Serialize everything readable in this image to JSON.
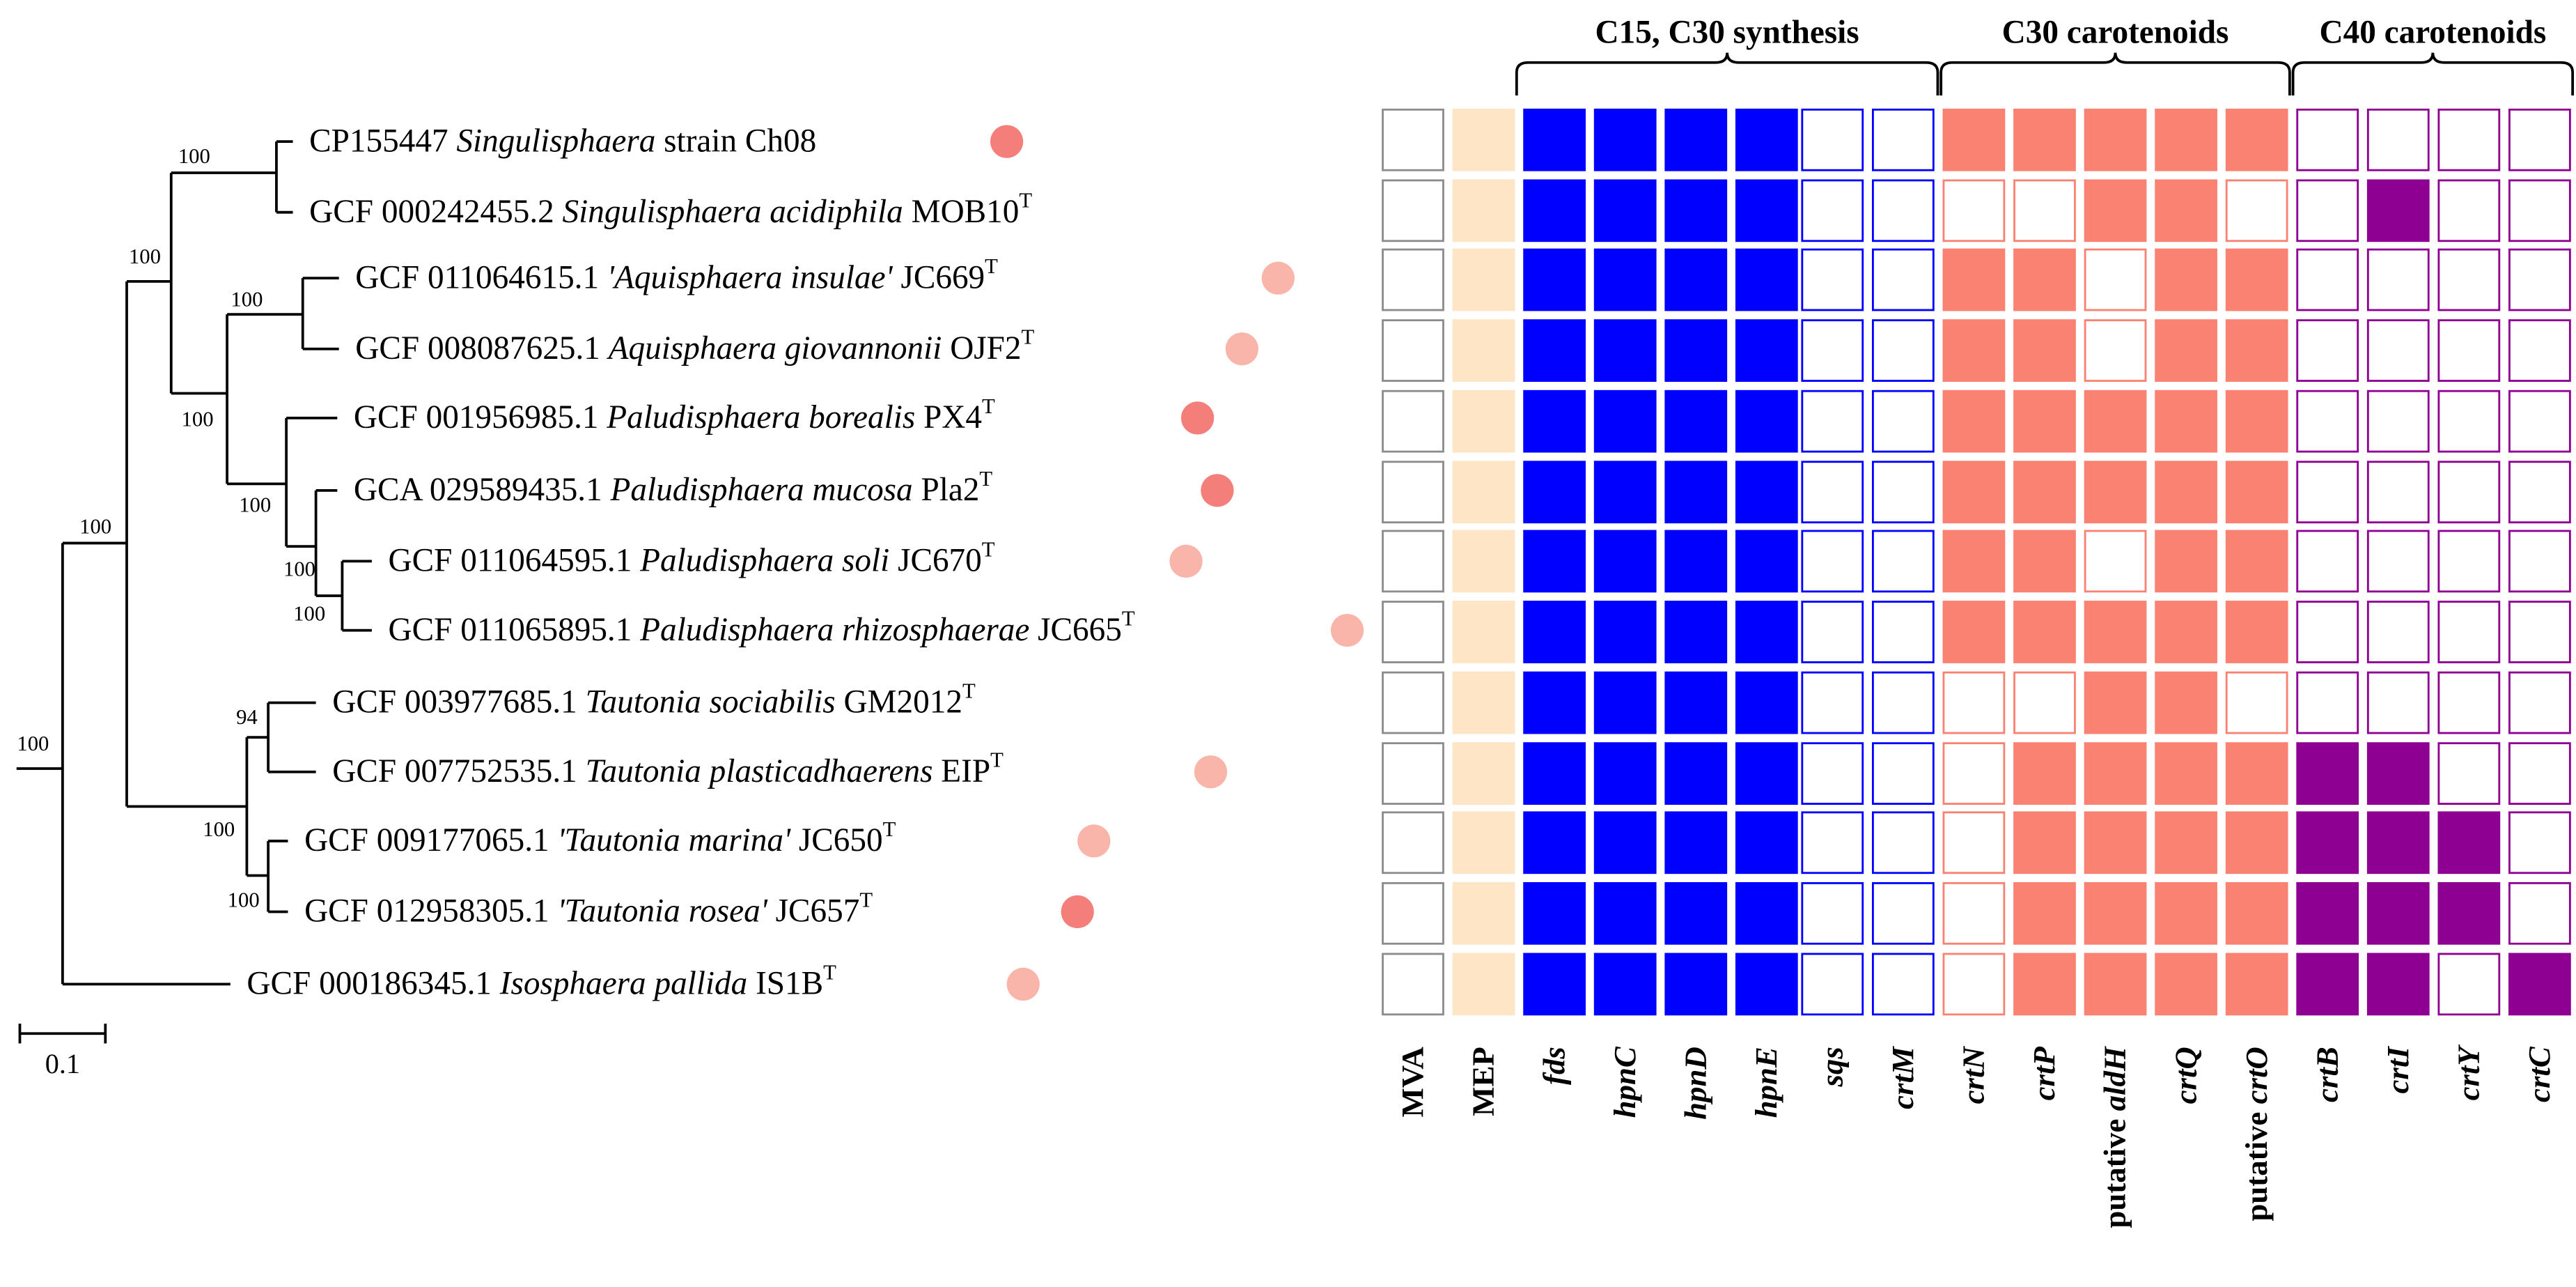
{
  "colors": {
    "line": "#000000",
    "cell_border_grey": "#8c8c8c",
    "mep_fill": "#fde5c6",
    "blue": "#0000ff",
    "salmon": "#fa8272",
    "purple": "#8e0092",
    "empty": "#ffffff",
    "dot_dark": "#f47e79",
    "dot_light": "#fab5aa"
  },
  "tree": {
    "scale_label": "0.1",
    "bootstraps": [
      "100",
      "100",
      "100",
      "100",
      "100",
      "100",
      "100",
      "100",
      "100",
      "94",
      "100",
      "100"
    ],
    "leaves": [
      {
        "accession": "CP155447",
        "genus_species": "Singulisphaera",
        "strain": "strain Ch08",
        "type_strain": false,
        "dot": "dark"
      },
      {
        "accession": "GCF 000242455.2",
        "genus_species": "Singulisphaera acidiphila",
        "strain": "MOB10",
        "type_strain": true,
        "dot": "none"
      },
      {
        "accession": "GCF 011064615.1",
        "genus_species": "'Aquisphaera insulae'",
        "strain": "JC669",
        "type_strain": true,
        "dot": "light"
      },
      {
        "accession": "GCF 008087625.1",
        "genus_species": "Aquisphaera giovannonii",
        "strain": "OJF2",
        "type_strain": true,
        "dot": "light"
      },
      {
        "accession": "GCF 001956985.1",
        "genus_species": "Paludisphaera borealis",
        "strain": "PX4",
        "type_strain": true,
        "dot": "dark"
      },
      {
        "accession": "GCA 029589435.1",
        "genus_species": "Paludisphaera mucosa",
        "strain": "Pla2",
        "type_strain": true,
        "dot": "dark"
      },
      {
        "accession": "GCF 011064595.1",
        "genus_species": "Paludisphaera soli",
        "strain": "JC670",
        "type_strain": true,
        "dot": "light"
      },
      {
        "accession": "GCF 011065895.1",
        "genus_species": "Paludisphaera rhizosphaerae",
        "strain": "JC665",
        "type_strain": true,
        "dot": "light"
      },
      {
        "accession": "GCF 003977685.1",
        "genus_species": "Tautonia sociabilis",
        "strain": "GM2012",
        "type_strain": true,
        "dot": "none"
      },
      {
        "accession": "GCF 007752535.1",
        "genus_species": "Tautonia plasticadhaerens",
        "strain": "EIP",
        "type_strain": true,
        "dot": "light"
      },
      {
        "accession": "GCF 009177065.1",
        "genus_species": "'Tautonia marina'",
        "strain": "JC650",
        "type_strain": true,
        "dot": "light"
      },
      {
        "accession": "GCF 012958305.1 ",
        "genus_species": "'Tautonia rosea'",
        "strain": "JC657",
        "type_strain": true,
        "dot": "dark"
      },
      {
        "accession": "GCF 000186345.1",
        "genus_species": "Isosphaera pallida",
        "strain": "IS1B",
        "type_strain": true,
        "dot": "light"
      }
    ]
  },
  "heatmap": {
    "group_headers": [
      "C15, C30 synthesis",
      "C30 carotenoids",
      "C40 carotenoids"
    ],
    "columns": [
      {
        "prefix": "",
        "gene": "MVA",
        "italic": false,
        "group": "grey"
      },
      {
        "prefix": "",
        "gene": "MEP",
        "italic": false,
        "group": "mep"
      },
      {
        "prefix": "",
        "gene": "fds",
        "italic": true,
        "group": "blue"
      },
      {
        "prefix": "",
        "gene": "hpnC",
        "italic": true,
        "group": "blue"
      },
      {
        "prefix": "",
        "gene": "hpnD",
        "italic": true,
        "group": "blue"
      },
      {
        "prefix": "",
        "gene": "hpnE",
        "italic": true,
        "group": "blue"
      },
      {
        "prefix": "",
        "gene": "sqs",
        "italic": true,
        "group": "blue"
      },
      {
        "prefix": "",
        "gene": "crtM",
        "italic": true,
        "group": "blue"
      },
      {
        "prefix": "",
        "gene": "crtN",
        "italic": true,
        "group": "salmon"
      },
      {
        "prefix": "",
        "gene": "crtP",
        "italic": true,
        "group": "salmon"
      },
      {
        "prefix": "putative ",
        "gene": "aldH",
        "italic": true,
        "group": "salmon"
      },
      {
        "prefix": "",
        "gene": "crtQ",
        "italic": true,
        "group": "salmon"
      },
      {
        "prefix": "putative ",
        "gene": "crtO",
        "italic": true,
        "group": "salmon"
      },
      {
        "prefix": "",
        "gene": "crtB",
        "italic": true,
        "group": "purple"
      },
      {
        "prefix": "",
        "gene": "crtI",
        "italic": true,
        "group": "purple"
      },
      {
        "prefix": "",
        "gene": "crtY",
        "italic": true,
        "group": "purple"
      },
      {
        "prefix": "",
        "gene": "crtC",
        "italic": true,
        "group": "purple"
      }
    ],
    "presence": [
      [
        0,
        1,
        1,
        1,
        1,
        1,
        0,
        0,
        1,
        1,
        1,
        1,
        1,
        0,
        0,
        0,
        0
      ],
      [
        0,
        1,
        1,
        1,
        1,
        1,
        0,
        0,
        0,
        0,
        1,
        1,
        0,
        0,
        1,
        0,
        0
      ],
      [
        0,
        1,
        1,
        1,
        1,
        1,
        0,
        0,
        1,
        1,
        0,
        1,
        1,
        0,
        0,
        0,
        0
      ],
      [
        0,
        1,
        1,
        1,
        1,
        1,
        0,
        0,
        1,
        1,
        0,
        1,
        1,
        0,
        0,
        0,
        0
      ],
      [
        0,
        1,
        1,
        1,
        1,
        1,
        0,
        0,
        1,
        1,
        1,
        1,
        1,
        0,
        0,
        0,
        0
      ],
      [
        0,
        1,
        1,
        1,
        1,
        1,
        0,
        0,
        1,
        1,
        1,
        1,
        1,
        0,
        0,
        0,
        0
      ],
      [
        0,
        1,
        1,
        1,
        1,
        1,
        0,
        0,
        1,
        1,
        0,
        1,
        1,
        0,
        0,
        0,
        0
      ],
      [
        0,
        1,
        1,
        1,
        1,
        1,
        0,
        0,
        1,
        1,
        1,
        1,
        1,
        0,
        0,
        0,
        0
      ],
      [
        0,
        1,
        1,
        1,
        1,
        1,
        0,
        0,
        0,
        0,
        1,
        1,
        0,
        0,
        0,
        0,
        0
      ],
      [
        0,
        1,
        1,
        1,
        1,
        1,
        0,
        0,
        0,
        1,
        1,
        1,
        1,
        1,
        1,
        0,
        0
      ],
      [
        0,
        1,
        1,
        1,
        1,
        1,
        0,
        0,
        0,
        1,
        1,
        1,
        1,
        1,
        1,
        1,
        0
      ],
      [
        0,
        1,
        1,
        1,
        1,
        1,
        0,
        0,
        0,
        1,
        1,
        1,
        1,
        1,
        1,
        1,
        0
      ],
      [
        0,
        1,
        1,
        1,
        1,
        1,
        0,
        0,
        0,
        1,
        1,
        1,
        1,
        1,
        1,
        0,
        1
      ]
    ]
  }
}
